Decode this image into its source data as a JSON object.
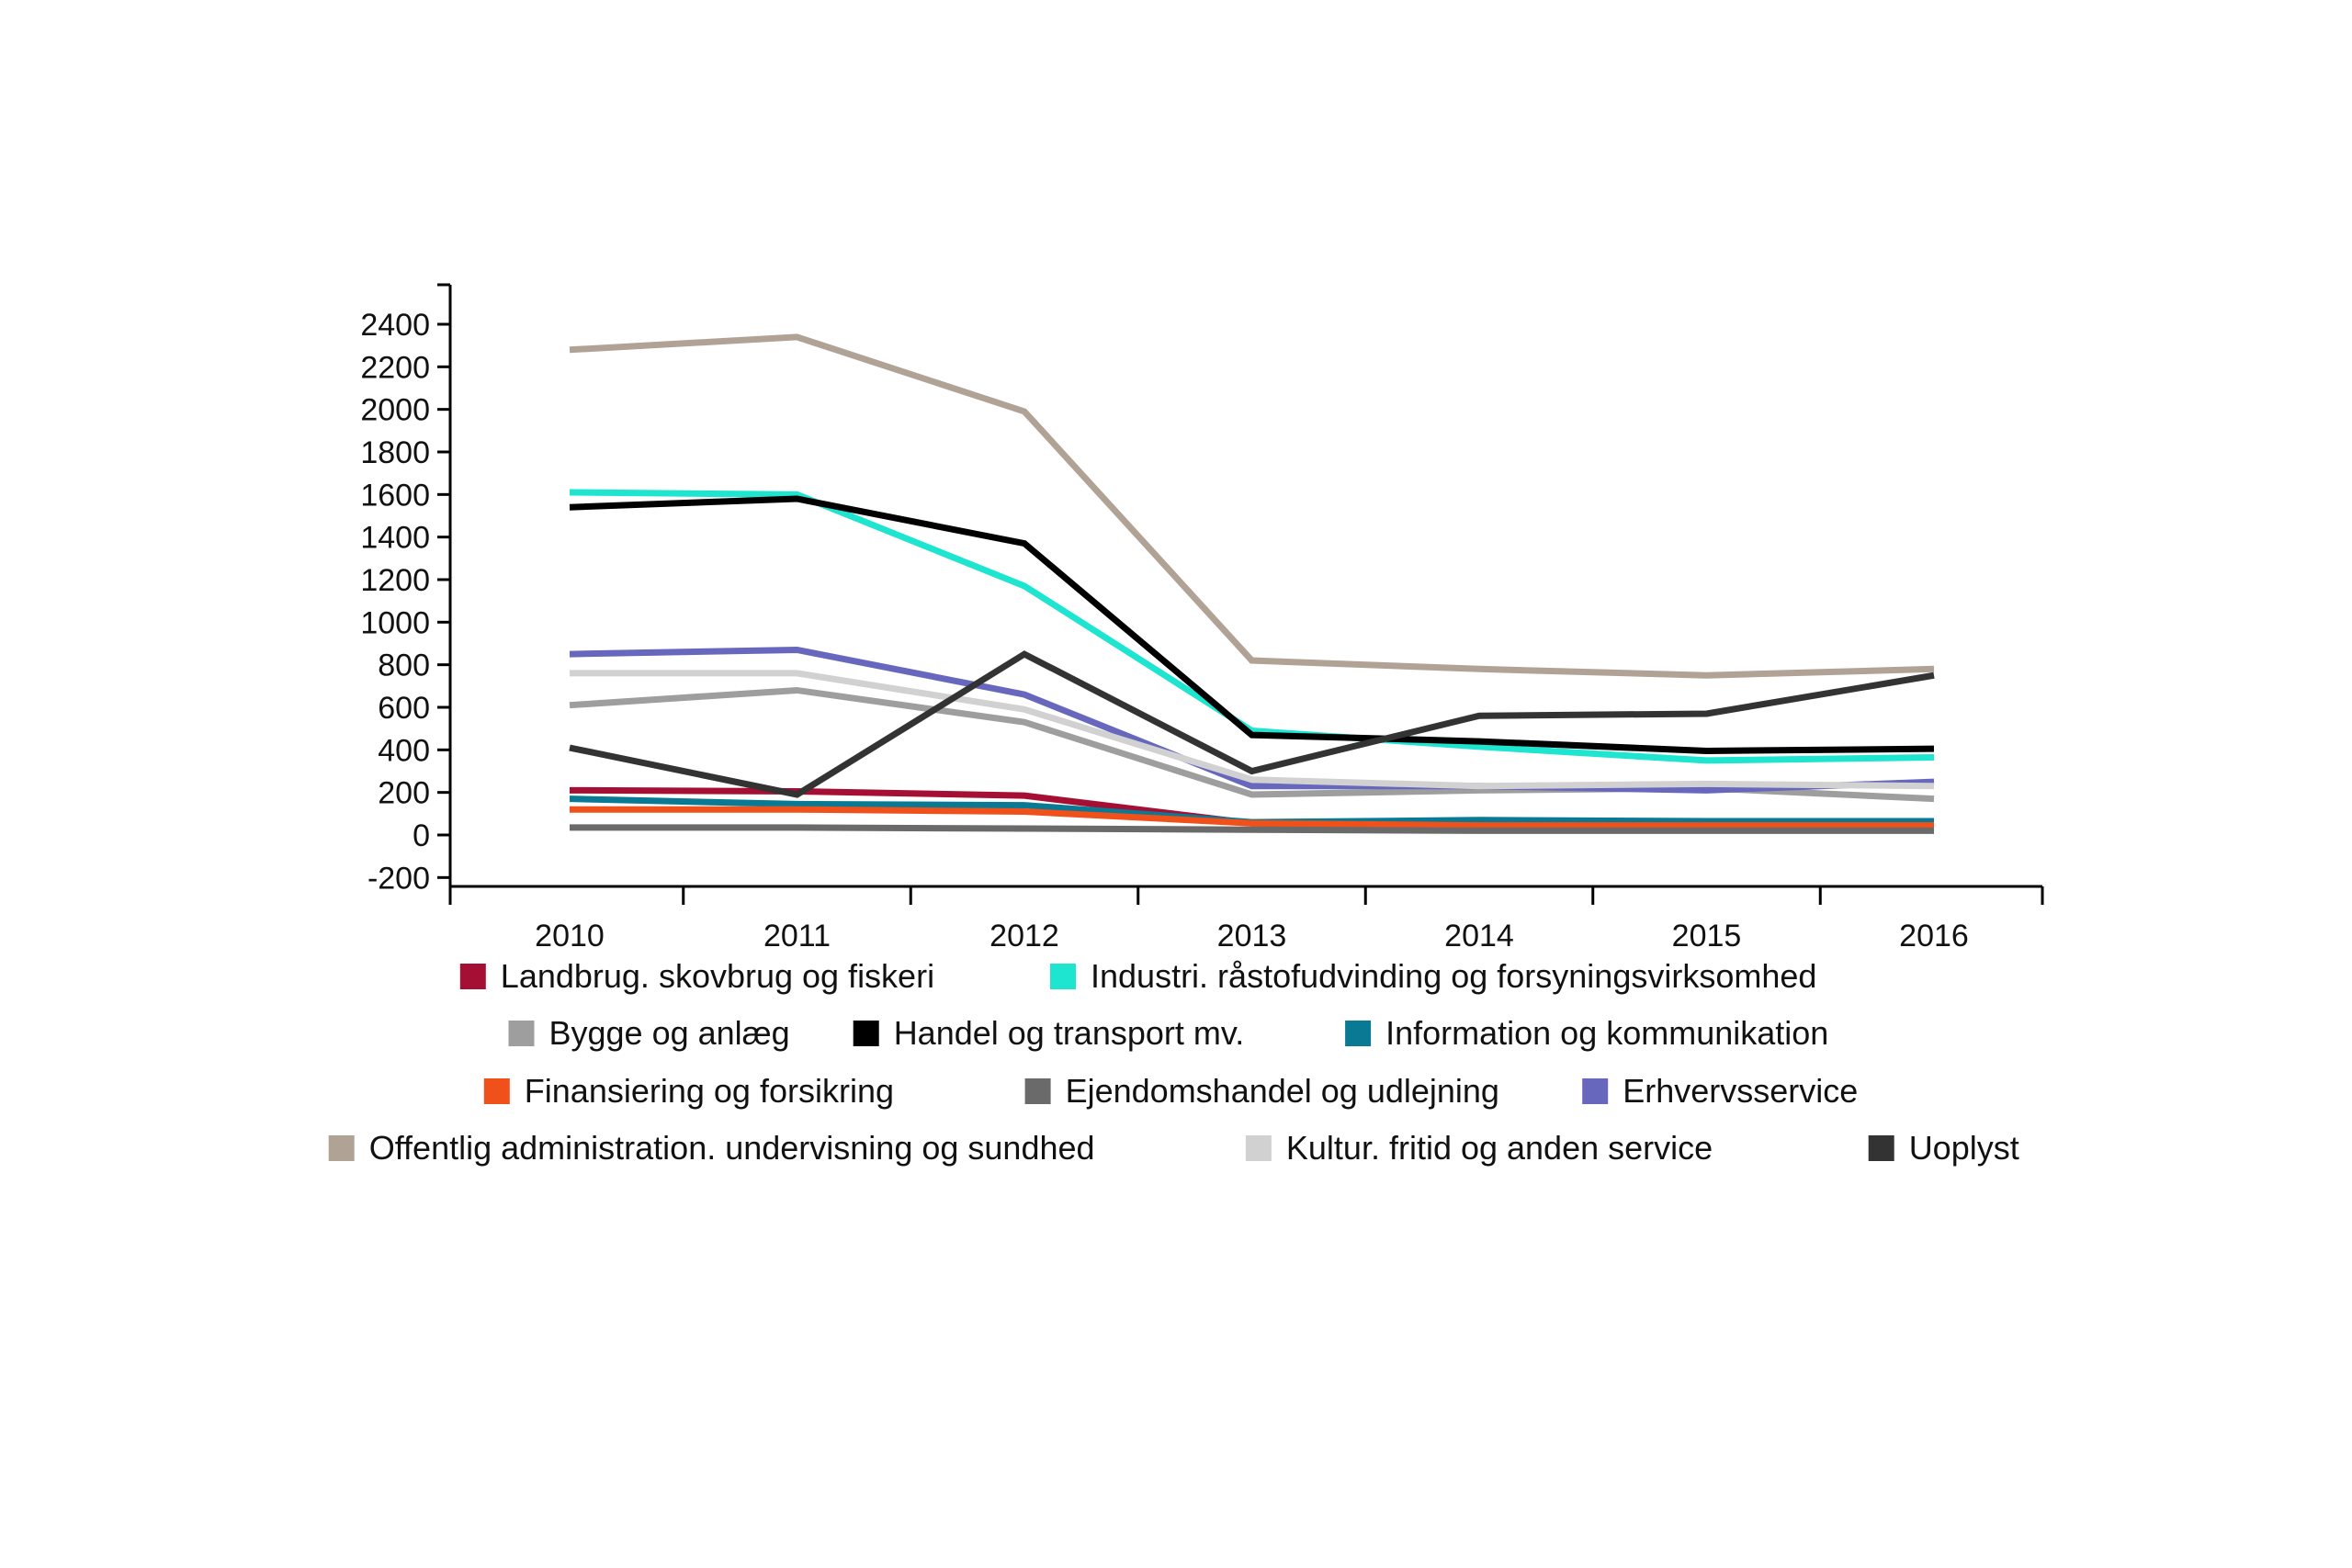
{
  "chart_data": {
    "type": "line",
    "title": "",
    "xlabel": "",
    "ylabel": "",
    "x": [
      "2010",
      "2011",
      "2012",
      "2013",
      "2014",
      "2015",
      "2016"
    ],
    "ylim": [
      -200,
      2500
    ],
    "yticks": [
      -200,
      0,
      200,
      400,
      600,
      800,
      1000,
      1200,
      1400,
      1600,
      1800,
      2000,
      2200,
      2400
    ],
    "ytick_labels": [
      "-200",
      "0",
      "200",
      "400",
      "600",
      "800",
      "1000",
      "1200",
      "1400",
      "1600",
      "1800",
      "2000",
      "2200",
      "2400"
    ],
    "grid": false,
    "legend_position": "bottom",
    "series": [
      {
        "name": "Landbrug. skovbrug og fiskeri",
        "color": "#a50f34",
        "values": [
          210,
          205,
          185,
          55,
          50,
          50,
          50
        ]
      },
      {
        "name": "Industri. råstofudvinding og forsyningsvirksomhed",
        "color": "#1de5d0",
        "values": [
          1610,
          1600,
          1170,
          490,
          415,
          350,
          365
        ]
      },
      {
        "name": "Bygge og anlæg",
        "color": "#9e9e9e",
        "values": [
          610,
          680,
          530,
          190,
          210,
          220,
          170
        ]
      },
      {
        "name": "Handel og transport mv.",
        "color": "#000000",
        "values": [
          1540,
          1580,
          1370,
          470,
          440,
          395,
          405
        ]
      },
      {
        "name": "Information og kommunikation",
        "color": "#0a7a94",
        "values": [
          170,
          145,
          140,
          60,
          70,
          65,
          65
        ]
      },
      {
        "name": "Finansiering og forsikring",
        "color": "#f0501a",
        "values": [
          120,
          120,
          110,
          55,
          45,
          45,
          45
        ]
      },
      {
        "name": "Ejendomshandel og udlejning",
        "color": "#6a6a6a",
        "values": [
          35,
          35,
          30,
          25,
          20,
          20,
          20
        ]
      },
      {
        "name": "Erhvervsservice",
        "color": "#6667bd",
        "values": [
          850,
          870,
          660,
          230,
          230,
          210,
          250
        ]
      },
      {
        "name": "Offentlig administration. undervisning og sundhed",
        "color": "#b1a296",
        "values": [
          2280,
          2340,
          1990,
          820,
          780,
          750,
          780
        ]
      },
      {
        "name": "Kultur. fritid og anden service",
        "color": "#d1d1d1",
        "values": [
          760,
          760,
          590,
          260,
          230,
          240,
          230
        ]
      },
      {
        "name": "Uoplyst",
        "color": "#333333",
        "values": [
          410,
          190,
          850,
          300,
          560,
          570,
          750
        ]
      }
    ]
  }
}
